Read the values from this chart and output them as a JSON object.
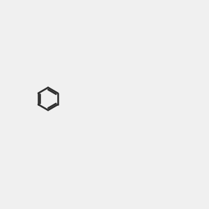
{
  "background_color": "#f0f0f0",
  "bond_color": "#2d2d2d",
  "N_color": "#0000ff",
  "NH_color": "#4a9090",
  "O_color": "#ff0000",
  "S_color": "#cccc00",
  "C_color": "#2d2d2d",
  "line_width": 1.8,
  "font_size": 9.5
}
